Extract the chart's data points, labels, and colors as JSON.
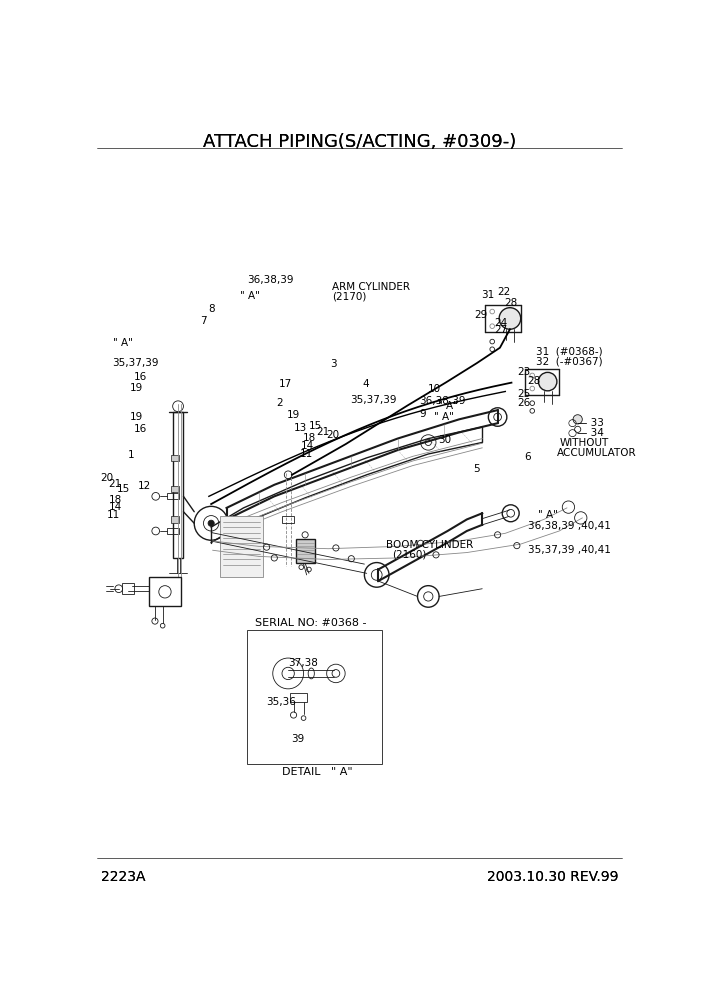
{
  "title": "ATTACH PIPING(S/ACTING, #0309-)",
  "footer_left": "2223A",
  "footer_right": "2003.10.30 REV.99",
  "bg_color": "#ffffff",
  "line_color": "#1a1a1a",
  "gray_color": "#888888",
  "light_gray": "#cccccc",
  "title_fontsize": 13,
  "footer_fontsize": 10,
  "label_fontsize": 7.5
}
